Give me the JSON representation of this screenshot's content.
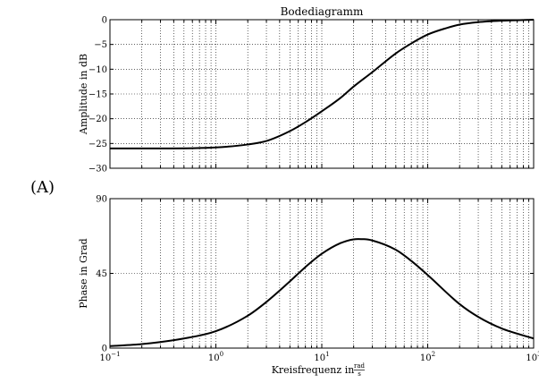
{
  "panel_label": "(A)",
  "chart_data": [
    {
      "type": "line",
      "title": "Bodediagramm",
      "ylabel": "Amplitude in dB",
      "xlabel": "",
      "xscale": "log",
      "xlim": [
        0.1,
        1000
      ],
      "ylim": [
        -30,
        0
      ],
      "yticks": [
        0,
        -5,
        -10,
        -15,
        -20,
        -25,
        -30
      ],
      "grid": true,
      "series": [
        {
          "x": [
            0.1,
            0.3,
            1,
            2,
            3,
            5,
            7,
            10,
            15,
            20,
            30,
            50,
            70,
            100,
            150,
            200,
            300,
            500,
            1000
          ],
          "values": [
            -26.0,
            -26.0,
            -25.8,
            -25.2,
            -24.5,
            -22.5,
            -20.7,
            -18.5,
            -15.8,
            -13.5,
            -10.6,
            -6.8,
            -4.8,
            -3.0,
            -1.7,
            -1.0,
            -0.5,
            -0.2,
            0.0
          ]
        }
      ]
    },
    {
      "type": "line",
      "title": "",
      "ylabel": "Phase in Grad",
      "xlabel": "Kreisfrequenz in",
      "xlabel_unit_num": "rad",
      "xlabel_unit_den": "s",
      "xscale": "log",
      "xlim": [
        0.1,
        1000
      ],
      "ylim": [
        0,
        90
      ],
      "yticks": [
        0,
        45,
        90
      ],
      "grid": true,
      "series": [
        {
          "x": [
            0.1,
            0.2,
            0.5,
            1,
            2,
            3,
            5,
            7,
            10,
            15,
            20,
            25,
            30,
            50,
            70,
            100,
            200,
            300,
            500,
            1000
          ],
          "values": [
            1.2,
            2.4,
            5.8,
            10.2,
            19.5,
            27.8,
            40.2,
            48.8,
            56.8,
            63.2,
            65.5,
            65.6,
            64.8,
            59.2,
            52.5,
            44.0,
            26.5,
            18.8,
            11.8,
            5.8
          ]
        }
      ]
    }
  ]
}
